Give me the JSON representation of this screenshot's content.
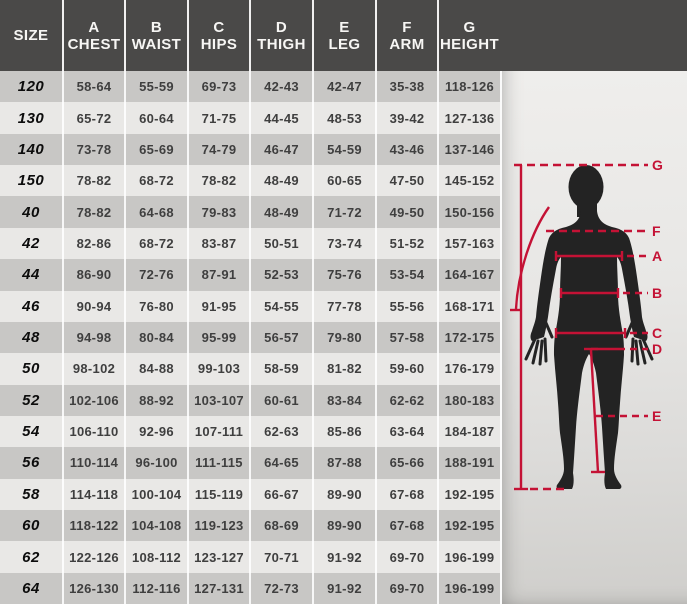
{
  "table": {
    "columns": [
      {
        "letter": "",
        "label": "SIZE"
      },
      {
        "letter": "A",
        "label": "CHEST"
      },
      {
        "letter": "B",
        "label": "WAIST"
      },
      {
        "letter": "C",
        "label": "HIPS"
      },
      {
        "letter": "D",
        "label": "THIGH"
      },
      {
        "letter": "E",
        "label": "LEG"
      },
      {
        "letter": "F",
        "label": "ARM"
      },
      {
        "letter": "G",
        "label": "HEIGHT"
      }
    ],
    "rows": [
      [
        "120",
        "58-64",
        "55-59",
        "69-73",
        "42-43",
        "42-47",
        "35-38",
        "118-126"
      ],
      [
        "130",
        "65-72",
        "60-64",
        "71-75",
        "44-45",
        "48-53",
        "39-42",
        "127-136"
      ],
      [
        "140",
        "73-78",
        "65-69",
        "74-79",
        "46-47",
        "54-59",
        "43-46",
        "137-146"
      ],
      [
        "150",
        "78-82",
        "68-72",
        "78-82",
        "48-49",
        "60-65",
        "47-50",
        "145-152"
      ],
      [
        "40",
        "78-82",
        "64-68",
        "79-83",
        "48-49",
        "71-72",
        "49-50",
        "150-156"
      ],
      [
        "42",
        "82-86",
        "68-72",
        "83-87",
        "50-51",
        "73-74",
        "51-52",
        "157-163"
      ],
      [
        "44",
        "86-90",
        "72-76",
        "87-91",
        "52-53",
        "75-76",
        "53-54",
        "164-167"
      ],
      [
        "46",
        "90-94",
        "76-80",
        "91-95",
        "54-55",
        "77-78",
        "55-56",
        "168-171"
      ],
      [
        "48",
        "94-98",
        "80-84",
        "95-99",
        "56-57",
        "79-80",
        "57-58",
        "172-175"
      ],
      [
        "50",
        "98-102",
        "84-88",
        "99-103",
        "58-59",
        "81-82",
        "59-60",
        "176-179"
      ],
      [
        "52",
        "102-106",
        "88-92",
        "103-107",
        "60-61",
        "83-84",
        "62-62",
        "180-183"
      ],
      [
        "54",
        "106-110",
        "92-96",
        "107-111",
        "62-63",
        "85-86",
        "63-64",
        "184-187"
      ],
      [
        "56",
        "110-114",
        "96-100",
        "111-115",
        "64-65",
        "87-88",
        "65-66",
        "188-191"
      ],
      [
        "58",
        "114-118",
        "100-104",
        "115-119",
        "66-67",
        "89-90",
        "67-68",
        "192-195"
      ],
      [
        "60",
        "118-122",
        "104-108",
        "119-123",
        "68-69",
        "89-90",
        "67-68",
        "192-195"
      ],
      [
        "62",
        "122-126",
        "108-112",
        "123-127",
        "70-71",
        "91-92",
        "69-70",
        "196-199"
      ],
      [
        "64",
        "126-130",
        "112-116",
        "127-131",
        "72-73",
        "91-92",
        "69-70",
        "196-199"
      ]
    ]
  },
  "figure": {
    "markers": {
      "g": "G",
      "f": "F",
      "a": "A",
      "b": "B",
      "c": "C",
      "d": "D",
      "e": "E"
    }
  },
  "colors": {
    "header_bg": "#4a4948",
    "row_dark": "#c8c7c5",
    "row_light": "#e9e8e6",
    "accent_red": "#c41235",
    "silhouette": "#232323"
  }
}
